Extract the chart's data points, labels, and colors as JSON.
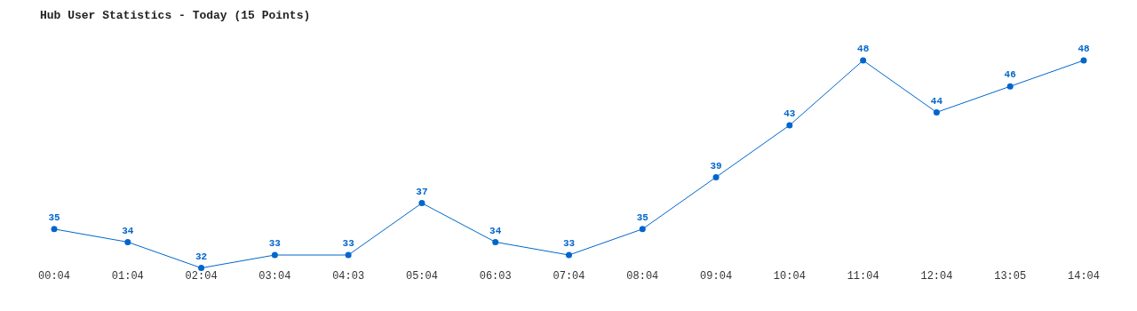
{
  "chart_data": {
    "type": "line",
    "title": "Hub User Statistics - Today (15 Points)",
    "categories": [
      "00:04",
      "01:04",
      "02:04",
      "03:04",
      "04:03",
      "05:04",
      "06:03",
      "07:04",
      "08:04",
      "09:04",
      "10:04",
      "11:04",
      "12:04",
      "13:05",
      "14:04"
    ],
    "series": [
      {
        "color": "#0066cc",
        "values": [
          35,
          34,
          32,
          33,
          33,
          37,
          34,
          33,
          35,
          39,
          43,
          48,
          44,
          46,
          48
        ]
      }
    ],
    "tick_labels": "x",
    "data_labels": true,
    "grid": false,
    "legend": false,
    "marker": "circle",
    "line_style": "solid"
  }
}
